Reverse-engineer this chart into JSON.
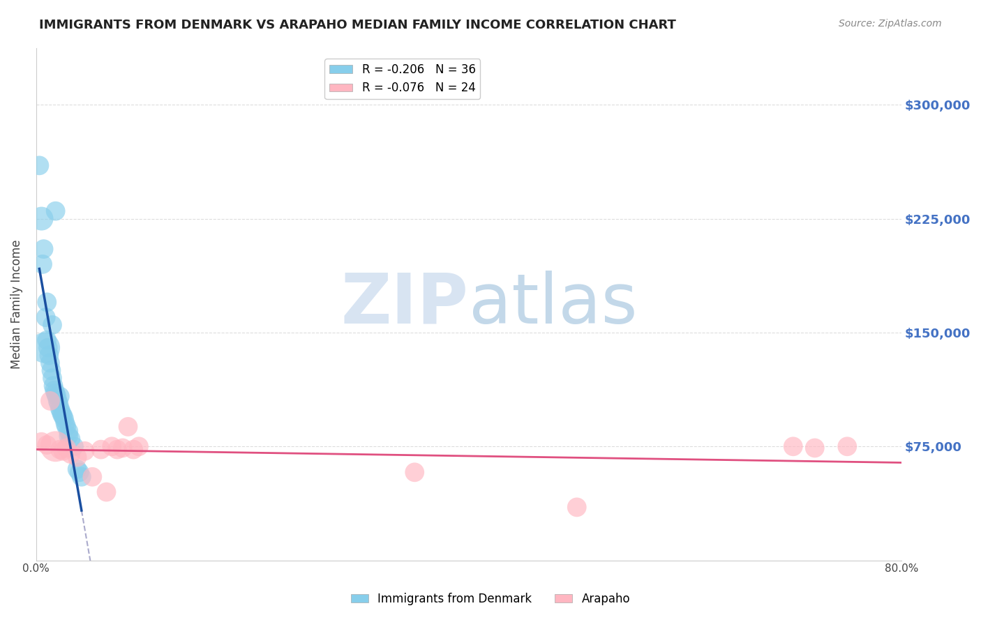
{
  "title": "IMMIGRANTS FROM DENMARK VS ARAPAHO MEDIAN FAMILY INCOME CORRELATION CHART",
  "source_text": "Source: ZipAtlas.com",
  "ylabel": "Median Family Income",
  "xlim": [
    0.0,
    0.8
  ],
  "ylim": [
    0,
    337500
  ],
  "yticks": [
    0,
    75000,
    150000,
    225000,
    300000
  ],
  "ytick_labels": [
    "",
    "$75,000",
    "$150,000",
    "$225,000",
    "$300,000"
  ],
  "xticks": [
    0.0,
    0.1,
    0.2,
    0.3,
    0.4,
    0.5,
    0.6,
    0.7,
    0.8
  ],
  "xtick_labels": [
    "0.0%",
    "",
    "",
    "",
    "",
    "",
    "",
    "",
    "80.0%"
  ],
  "watermark_zip": "ZIP",
  "watermark_atlas": "atlas",
  "legend_entries": [
    {
      "label": "R = -0.206   N = 36",
      "color": "#87CEEB"
    },
    {
      "label": "R = -0.076   N = 24",
      "color": "#FFB6C1"
    }
  ],
  "blue_scatter_x": [
    0.003,
    0.005,
    0.007,
    0.008,
    0.009,
    0.01,
    0.011,
    0.012,
    0.013,
    0.014,
    0.015,
    0.016,
    0.017,
    0.018,
    0.019,
    0.02,
    0.021,
    0.022,
    0.023,
    0.024,
    0.025,
    0.026,
    0.027,
    0.028,
    0.03,
    0.032,
    0.035,
    0.038,
    0.04,
    0.042,
    0.018,
    0.01,
    0.006,
    0.015,
    0.022,
    0.03
  ],
  "blue_scatter_y": [
    260000,
    225000,
    205000,
    140000,
    160000,
    145000,
    140000,
    135000,
    130000,
    125000,
    120000,
    115000,
    112000,
    110000,
    108000,
    105000,
    103000,
    100000,
    98000,
    96000,
    95000,
    93000,
    90000,
    88000,
    82000,
    80000,
    75000,
    60000,
    58000,
    55000,
    230000,
    170000,
    195000,
    155000,
    108000,
    85000
  ],
  "blue_scatter_size": [
    80,
    120,
    80,
    200,
    80,
    80,
    80,
    80,
    80,
    80,
    80,
    80,
    80,
    80,
    80,
    80,
    80,
    80,
    80,
    80,
    80,
    80,
    80,
    80,
    80,
    80,
    80,
    80,
    80,
    80,
    80,
    80,
    80,
    80,
    80,
    80
  ],
  "pink_scatter_x": [
    0.005,
    0.01,
    0.013,
    0.018,
    0.022,
    0.025,
    0.028,
    0.032,
    0.038,
    0.045,
    0.052,
    0.06,
    0.065,
    0.07,
    0.075,
    0.08,
    0.085,
    0.09,
    0.095,
    0.7,
    0.72,
    0.75,
    0.35,
    0.5
  ],
  "pink_scatter_y": [
    78000,
    76000,
    105000,
    75000,
    73000,
    72000,
    74000,
    70000,
    68000,
    72000,
    55000,
    73000,
    45000,
    75000,
    73000,
    74000,
    88000,
    73000,
    75000,
    75000,
    74000,
    75000,
    58000,
    35000
  ],
  "pink_scatter_size": [
    80,
    80,
    80,
    200,
    80,
    80,
    80,
    80,
    80,
    80,
    80,
    80,
    80,
    80,
    80,
    80,
    80,
    80,
    80,
    80,
    80,
    80,
    80,
    80
  ],
  "blue_line_color": "#1a4fa0",
  "pink_line_color": "#e05080",
  "dashed_line_color": "#aaaacc",
  "blue_scatter_color": "#87CEEB",
  "pink_scatter_color": "#FFB6C1",
  "background_color": "#ffffff",
  "grid_color": "#dddddd",
  "right_label_color": "#4472C4",
  "title_color": "#222222"
}
